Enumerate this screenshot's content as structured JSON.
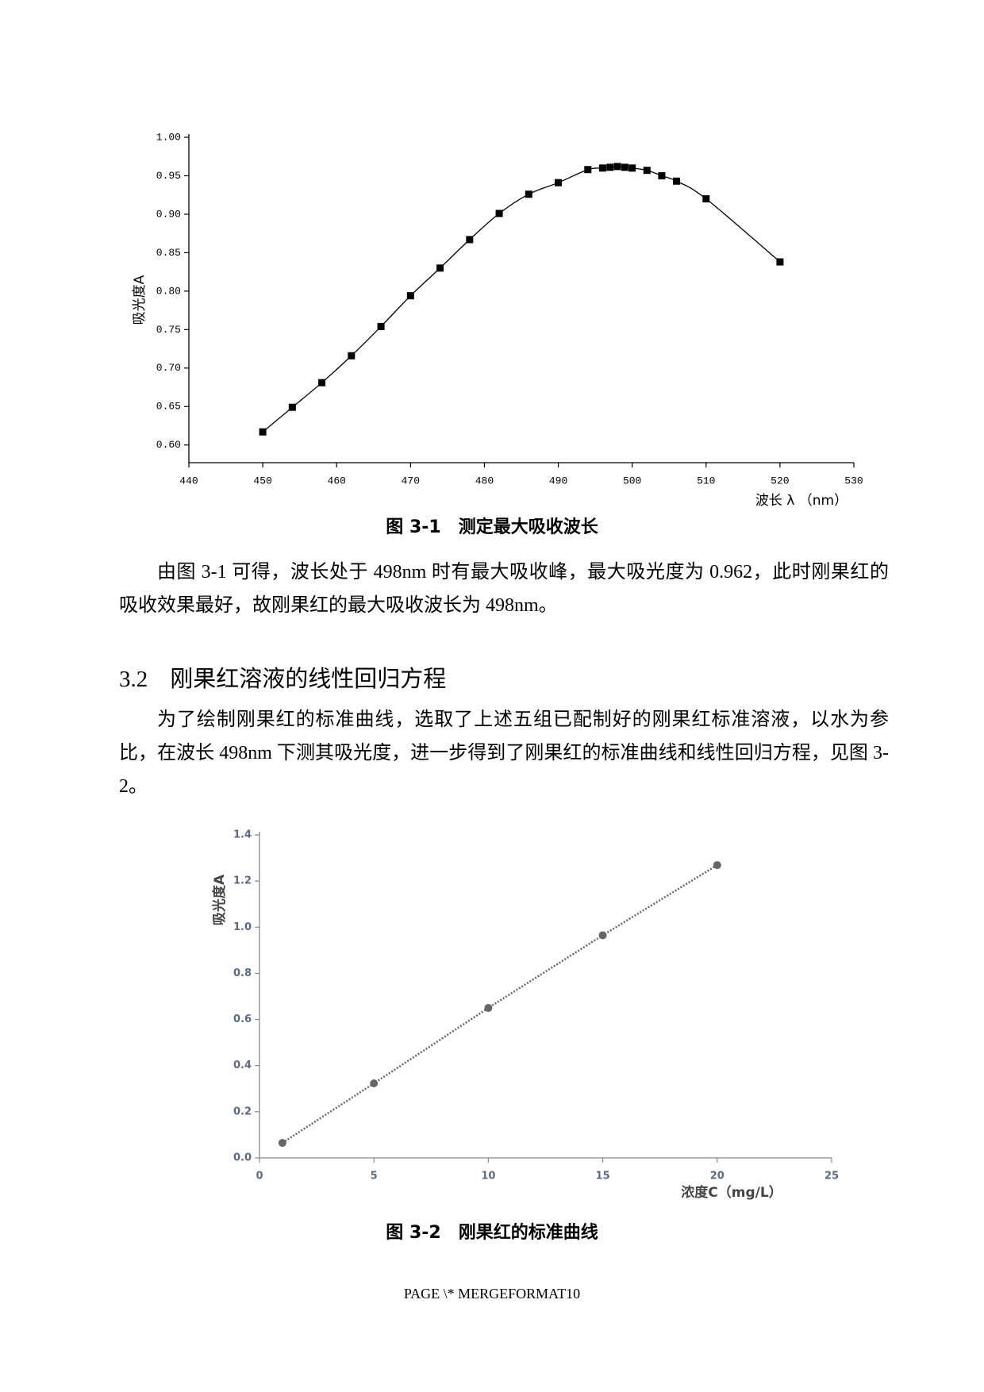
{
  "chart_data": [
    {
      "type": "line",
      "x_label": "波长 λ （nm）",
      "y_label": "吸光度A",
      "caption": "图 3-1　测定最大吸收波长",
      "x": [
        450,
        454,
        458,
        462,
        466,
        470,
        474,
        478,
        482,
        486,
        490,
        494,
        496,
        497,
        498,
        499,
        500,
        502,
        504,
        506,
        510,
        520
      ],
      "series": [
        {
          "color": "#000000",
          "values": [
            0.617,
            0.649,
            0.681,
            0.716,
            0.754,
            0.794,
            0.83,
            0.867,
            0.901,
            0.926,
            0.941,
            0.958,
            0.96,
            0.961,
            0.962,
            0.961,
            0.96,
            0.957,
            0.95,
            0.943,
            0.92,
            0.838
          ]
        }
      ],
      "marker": "square",
      "line_style": "solid",
      "smooth": true,
      "xlim": [
        440,
        530
      ],
      "xticks": [
        440,
        450,
        460,
        470,
        480,
        490,
        500,
        510,
        520,
        530
      ],
      "ylim": [
        0.577,
        1.0
      ],
      "yticks": [
        {
          "value": 0.6,
          "label": "0.60"
        },
        0.65,
        {
          "value": 0.7,
          "label": "0.70"
        },
        0.75,
        {
          "value": 0.8,
          "label": "0.80"
        },
        0.85,
        {
          "value": 0.9,
          "label": "0.90"
        },
        0.95,
        {
          "value": 1.0,
          "label": "1.00"
        }
      ]
    },
    {
      "type": "scatter",
      "x_label": "浓度C（mg/L）",
      "y_label": "吸光度A",
      "caption": "图 3-2　刚果红的标准曲线",
      "x": [
        1,
        5,
        10,
        15,
        20
      ],
      "series": [
        {
          "color": "#666666",
          "values": [
            0.065,
            0.323,
            0.65,
            0.965,
            1.269
          ]
        }
      ],
      "marker": "circle",
      "line_style": "dotted",
      "smooth": false,
      "xlim": [
        0,
        25
      ],
      "xticks": [
        0,
        5,
        10,
        15,
        20,
        25
      ],
      "ylim": [
        0,
        1.4
      ],
      "yticks": [
        {
          "value": 0,
          "label": "0.0"
        },
        0.2,
        0.4,
        0.6,
        0.8,
        {
          "value": 1,
          "label": "1.0"
        },
        1.2,
        1.4
      ]
    }
  ],
  "document": {
    "paragraphs": [
      "由图 3-1 可得，波长处于 498nm 时有最大吸收峰，最大吸光度为 0.962，此时刚果红的吸收效果最好，故刚果红的最大吸收波长为 498nm。",
      "为了绘制刚果红的标准曲线，选取了上述五组已配制好的刚果红标准溶液，以水为参比，在波长 498nm 下测其吸光度，进一步得到了刚果红的标准曲线和线性回归方程，见图 3-2。"
    ],
    "heading": {
      "number": "3.2",
      "title": "刚果红溶液的线性回归方程"
    },
    "footer": "PAGE \\* MERGEFORMAT10"
  }
}
